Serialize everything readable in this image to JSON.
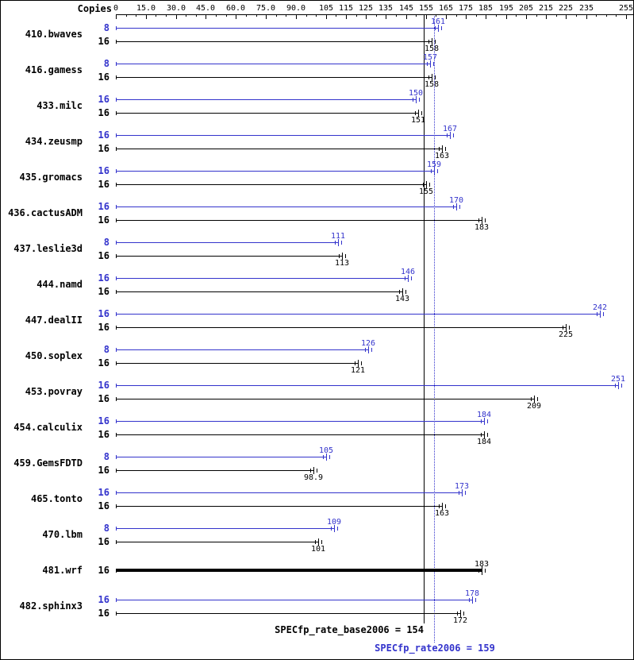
{
  "header": {
    "copies_label": "Copies"
  },
  "footer": {
    "base_label": "SPECfp_rate_base2006 = 154",
    "peak_label": "SPECfp_rate2006 = 159"
  },
  "chart_data": {
    "type": "bar",
    "orientation": "horizontal",
    "title": "",
    "xlabel": "",
    "ylabel": "Copies",
    "xlim": [
      0,
      255
    ],
    "grid": false,
    "legend": "none",
    "colors": {
      "peak": "#3333cc",
      "base": "#000000"
    },
    "xtick_labels": [
      "0",
      "15.0",
      "30.0",
      "45.0",
      "60.0",
      "75.0",
      "90.0",
      "105",
      "115",
      "125",
      "135",
      "145",
      "155",
      "165",
      "175",
      "185",
      "195",
      "205",
      "215",
      "225",
      "235",
      "255"
    ],
    "xtick_values": [
      0,
      15,
      30,
      45,
      60,
      75,
      90,
      105,
      115,
      125,
      135,
      145,
      155,
      165,
      175,
      185,
      195,
      205,
      215,
      225,
      235,
      255
    ],
    "benchmarks": [
      {
        "name": "410.bwaves",
        "bars": [
          {
            "series": "peak",
            "copies": "8",
            "value": 161,
            "label": "161"
          },
          {
            "series": "base",
            "copies": "16",
            "value": 158,
            "label": "158"
          }
        ]
      },
      {
        "name": "416.gamess",
        "bars": [
          {
            "series": "peak",
            "copies": "8",
            "value": 157,
            "label": "157"
          },
          {
            "series": "base",
            "copies": "16",
            "value": 158,
            "label": "158"
          }
        ]
      },
      {
        "name": "433.milc",
        "bars": [
          {
            "series": "peak",
            "copies": "16",
            "value": 150,
            "label": "150"
          },
          {
            "series": "base",
            "copies": "16",
            "value": 151,
            "label": "151"
          }
        ]
      },
      {
        "name": "434.zeusmp",
        "bars": [
          {
            "series": "peak",
            "copies": "16",
            "value": 167,
            "label": "167"
          },
          {
            "series": "base",
            "copies": "16",
            "value": 163,
            "label": "163"
          }
        ]
      },
      {
        "name": "435.gromacs",
        "bars": [
          {
            "series": "peak",
            "copies": "16",
            "value": 159,
            "label": "159"
          },
          {
            "series": "base",
            "copies": "16",
            "value": 155,
            "label": "155"
          }
        ]
      },
      {
        "name": "436.cactusADM",
        "bars": [
          {
            "series": "peak",
            "copies": "16",
            "value": 170,
            "label": "170"
          },
          {
            "series": "base",
            "copies": "16",
            "value": 183,
            "label": "183"
          }
        ]
      },
      {
        "name": "437.leslie3d",
        "bars": [
          {
            "series": "peak",
            "copies": "8",
            "value": 111,
            "label": "111"
          },
          {
            "series": "base",
            "copies": "16",
            "value": 113,
            "label": "113"
          }
        ]
      },
      {
        "name": "444.namd",
        "bars": [
          {
            "series": "peak",
            "copies": "16",
            "value": 146,
            "label": "146"
          },
          {
            "series": "base",
            "copies": "16",
            "value": 143,
            "label": "143"
          }
        ]
      },
      {
        "name": "447.dealII",
        "bars": [
          {
            "series": "peak",
            "copies": "16",
            "value": 242,
            "label": "242"
          },
          {
            "series": "base",
            "copies": "16",
            "value": 225,
            "label": "225"
          }
        ]
      },
      {
        "name": "450.soplex",
        "bars": [
          {
            "series": "peak",
            "copies": "8",
            "value": 126,
            "label": "126"
          },
          {
            "series": "base",
            "copies": "16",
            "value": 121,
            "label": "121"
          }
        ]
      },
      {
        "name": "453.povray",
        "bars": [
          {
            "series": "peak",
            "copies": "16",
            "value": 251,
            "label": "251"
          },
          {
            "series": "base",
            "copies": "16",
            "value": 209,
            "label": "209"
          }
        ]
      },
      {
        "name": "454.calculix",
        "bars": [
          {
            "series": "peak",
            "copies": "16",
            "value": 184,
            "label": "184"
          },
          {
            "series": "base",
            "copies": "16",
            "value": 184,
            "label": "184"
          }
        ]
      },
      {
        "name": "459.GemsFDTD",
        "bars": [
          {
            "series": "peak",
            "copies": "8",
            "value": 105,
            "label": "105"
          },
          {
            "series": "base",
            "copies": "16",
            "value": 98.9,
            "label": "98.9"
          }
        ]
      },
      {
        "name": "465.tonto",
        "bars": [
          {
            "series": "peak",
            "copies": "16",
            "value": 173,
            "label": "173"
          },
          {
            "series": "base",
            "copies": "16",
            "value": 163,
            "label": "163"
          }
        ]
      },
      {
        "name": "470.lbm",
        "bars": [
          {
            "series": "peak",
            "copies": "8",
            "value": 109,
            "label": "109"
          },
          {
            "series": "base",
            "copies": "16",
            "value": 101,
            "label": "101"
          }
        ]
      },
      {
        "name": "481.wrf",
        "bars": [
          {
            "series": "single",
            "copies": "16",
            "value": 183,
            "label": "183"
          }
        ]
      },
      {
        "name": "482.sphinx3",
        "bars": [
          {
            "series": "peak",
            "copies": "16",
            "value": 178,
            "label": "178"
          },
          {
            "series": "base",
            "copies": "16",
            "value": 172,
            "label": "172"
          }
        ]
      }
    ],
    "reference_lines": [
      {
        "name": "base",
        "value": 154,
        "label": "SPECfp_rate_base2006 = 154",
        "style": "solid",
        "color": "#000000"
      },
      {
        "name": "peak",
        "value": 159,
        "label": "SPECfp_rate2006 = 159",
        "style": "dotted",
        "color": "#3333cc"
      }
    ]
  }
}
